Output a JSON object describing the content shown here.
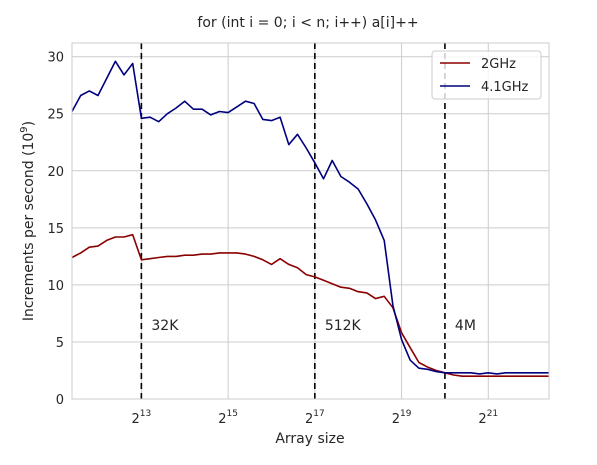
{
  "chart_data": {
    "type": "line",
    "title": "for (int i = 0; i < n; i++) a[i]++",
    "xlabel": "Array size",
    "ylabel_prefix": "Increments per second (10",
    "ylabel_exp": "9",
    "ylabel_suffix": ")",
    "x_scale": "log2",
    "xlim_log2": [
      11.4,
      22.4
    ],
    "ylim": [
      0,
      31.2
    ],
    "grid": true,
    "legend_position": "top-right",
    "yticks": [
      0,
      5,
      10,
      15,
      20,
      25,
      30
    ],
    "ytick_labels": [
      "0",
      "5",
      "10",
      "15",
      "20",
      "25",
      "30"
    ],
    "xticks": [
      {
        "log2": 13,
        "base": "2",
        "exp": "13"
      },
      {
        "log2": 15,
        "base": "2",
        "exp": "15"
      },
      {
        "log2": 17,
        "base": "2",
        "exp": "17"
      },
      {
        "log2": 19,
        "base": "2",
        "exp": "19"
      },
      {
        "log2": 21,
        "base": "2",
        "exp": "21"
      }
    ],
    "x_log2": [
      11.4,
      11.6,
      11.8,
      12.0,
      12.2,
      12.4,
      12.6,
      12.8,
      13.0,
      13.2,
      13.4,
      13.6,
      13.8,
      14.0,
      14.2,
      14.4,
      14.6,
      14.8,
      15.0,
      15.2,
      15.4,
      15.6,
      15.8,
      16.0,
      16.2,
      16.4,
      16.6,
      16.8,
      17.0,
      17.2,
      17.4,
      17.6,
      17.8,
      18.0,
      18.2,
      18.4,
      18.6,
      18.8,
      19.0,
      19.2,
      19.4,
      19.6,
      19.8,
      20.0,
      20.2,
      20.4,
      20.6,
      20.8,
      21.0,
      21.2,
      21.4,
      21.6,
      21.8,
      22.0,
      22.2,
      22.4
    ],
    "series": [
      {
        "name": "2GHz",
        "color": "#8b0000",
        "values": [
          12.4,
          12.8,
          13.3,
          13.4,
          13.9,
          14.2,
          14.2,
          14.4,
          12.2,
          12.3,
          12.4,
          12.5,
          12.5,
          12.6,
          12.6,
          12.7,
          12.7,
          12.8,
          12.8,
          12.8,
          12.7,
          12.5,
          12.2,
          11.8,
          12.3,
          11.8,
          11.5,
          10.9,
          10.7,
          10.4,
          10.1,
          9.8,
          9.7,
          9.4,
          9.3,
          8.8,
          9.0,
          8.0,
          5.8,
          4.5,
          3.2,
          2.8,
          2.5,
          2.3,
          2.1,
          2.0,
          2.0,
          2.0,
          2.0,
          2.0,
          2.0,
          2.0,
          2.0,
          2.0,
          2.0,
          2.0
        ]
      },
      {
        "name": "4.1GHz",
        "color": "#00007f",
        "values": [
          25.2,
          26.6,
          27.0,
          26.6,
          28.1,
          29.6,
          28.4,
          29.4,
          24.6,
          24.7,
          24.3,
          25.0,
          25.5,
          26.1,
          25.4,
          25.4,
          24.9,
          25.2,
          25.1,
          25.6,
          26.1,
          25.9,
          24.5,
          24.4,
          24.7,
          22.3,
          23.2,
          22.0,
          20.7,
          19.3,
          20.9,
          19.5,
          19.0,
          18.4,
          17.1,
          15.7,
          13.9,
          8.2,
          5.2,
          3.4,
          2.7,
          2.6,
          2.4,
          2.3,
          2.3,
          2.3,
          2.3,
          2.2,
          2.3,
          2.2,
          2.3,
          2.3,
          2.3,
          2.3,
          2.3,
          2.3
        ]
      }
    ],
    "vlines": [
      {
        "log2": 13,
        "label": "32K"
      },
      {
        "log2": 17,
        "label": "512K"
      },
      {
        "log2": 20,
        "label": "4M"
      }
    ],
    "vline_label_y": 6.5
  }
}
